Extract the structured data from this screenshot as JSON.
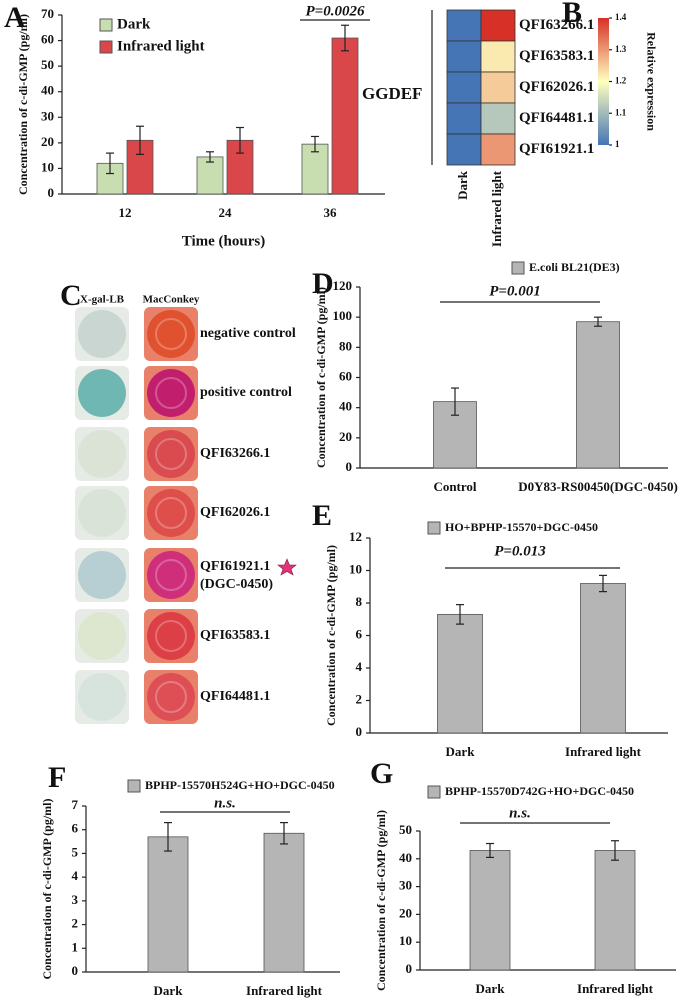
{
  "panel_labels": [
    "A",
    "B",
    "C",
    "D",
    "E",
    "F",
    "G"
  ],
  "chart_data": [
    {
      "type": "bar",
      "xlabel": "Time (hours)",
      "ylabel": "Concentration of c-di-GMP (pg/ml)",
      "categories": [
        "12",
        "24",
        "36"
      ],
      "ylim": [
        0,
        70
      ],
      "yticks": [
        0,
        10,
        20,
        30,
        40,
        50,
        60,
        70
      ],
      "series": [
        {
          "name": "Dark",
          "color": "#c8deb0",
          "values": [
            12,
            14.5,
            19.5
          ],
          "errors": [
            4,
            2,
            3
          ]
        },
        {
          "name": "Infrared light",
          "color": "#d9474a",
          "values": [
            21,
            21,
            61
          ],
          "errors": [
            5.5,
            5,
            5
          ]
        }
      ],
      "annotations": [
        "P=0.0026"
      ]
    },
    {
      "type": "heatmap",
      "group_label": "GGDEF",
      "colorbar_label": "Relative expression",
      "columns": [
        "Dark",
        "Infrared light"
      ],
      "rows": [
        "QFI63266.1",
        "QFI63583.1",
        "QFI62026.1",
        "QFI64481.1",
        "QFI61921.1"
      ],
      "values": [
        [
          1,
          1.42
        ],
        [
          1,
          1.22
        ],
        [
          1,
          1.25
        ],
        [
          1,
          1.12
        ],
        [
          1,
          1.3
        ]
      ],
      "zlim": [
        1,
        1.4
      ],
      "zticks": [
        1,
        1.1,
        1.2,
        1.3,
        1.4
      ],
      "colormap": [
        "#4575b4",
        "#ffffbf",
        "#d73027"
      ]
    },
    {
      "type": "bar",
      "ylabel": "Concentration of c-di-GMP (pg/ml)",
      "categories": [
        "Control",
        "D0Y83-RS00450(DGC-0450)"
      ],
      "ylim": [
        0,
        120
      ],
      "yticks": [
        0,
        20,
        40,
        60,
        80,
        100,
        120
      ],
      "series": [
        {
          "name": "E.coli BL21(DE3)",
          "color": "#b5b5b5",
          "values": [
            44,
            97
          ],
          "errors": [
            9,
            3
          ]
        }
      ],
      "annotations": [
        "P=0.001"
      ]
    },
    {
      "type": "bar",
      "ylabel": "Concentration of c-di-GMP (pg/ml)",
      "categories": [
        "Dark",
        "Infrared light"
      ],
      "ylim": [
        0,
        12
      ],
      "yticks": [
        0,
        2,
        4,
        6,
        8,
        10,
        12
      ],
      "series": [
        {
          "name": "HO+BPHP-15570+DGC-0450",
          "color": "#b5b5b5",
          "values": [
            7.3,
            9.2
          ],
          "errors": [
            0.6,
            0.5
          ]
        }
      ],
      "annotations": [
        "P=0.013"
      ]
    },
    {
      "type": "bar",
      "ylabel": "Concentration of c-di-GMP (pg/ml)",
      "categories": [
        "Dark",
        "Infrared light"
      ],
      "ylim": [
        0,
        7
      ],
      "yticks": [
        0,
        1,
        2,
        3,
        4,
        5,
        6,
        7
      ],
      "series": [
        {
          "name": "BPHP-15570H524G+HO+DGC-0450",
          "color": "#b5b5b5",
          "values": [
            5.7,
            5.85
          ],
          "errors": [
            0.6,
            0.45
          ]
        }
      ],
      "annotations": [
        "n.s."
      ]
    },
    {
      "type": "bar",
      "ylabel": "Concentration of c-di-GMP (pg/ml)",
      "categories": [
        "Dark",
        "Infrared light"
      ],
      "ylim": [
        0,
        50
      ],
      "yticks": [
        0,
        10,
        20,
        30,
        40,
        50
      ],
      "series": [
        {
          "name": "BPHP-15570D742G+HO+DGC-0450",
          "color": "#b5b5b5",
          "values": [
            43,
            43
          ],
          "errors": [
            2.5,
            3.5
          ]
        }
      ],
      "annotations": [
        "n.s."
      ]
    }
  ],
  "plates": {
    "headers": [
      "X-gal-LB",
      "MacConkey"
    ],
    "rows": [
      {
        "label": "negative control",
        "xgal": "#c9d6d2",
        "mac": "#e0522f"
      },
      {
        "label": "positive control",
        "xgal": "#6fb7b3",
        "mac": "#c21e6e"
      },
      {
        "label": "QFI63266.1",
        "xgal": "#dbe2d6",
        "mac": "#d94b4e"
      },
      {
        "label": "QFI62026.1",
        "xgal": "#d9e3d8",
        "mac": "#de4f4c"
      },
      {
        "label": "QFI61921.1",
        "sublabel": "(DGC-0450)",
        "xgal": "#b7cfd2",
        "mac": "#cf2e7a"
      },
      {
        "label": "QFI63583.1",
        "xgal": "#dde6cf",
        "mac": "#dc3f45"
      },
      {
        "label": "QFI64481.1",
        "xgal": "#d6e4dd",
        "mac": "#de4f55"
      }
    ]
  }
}
